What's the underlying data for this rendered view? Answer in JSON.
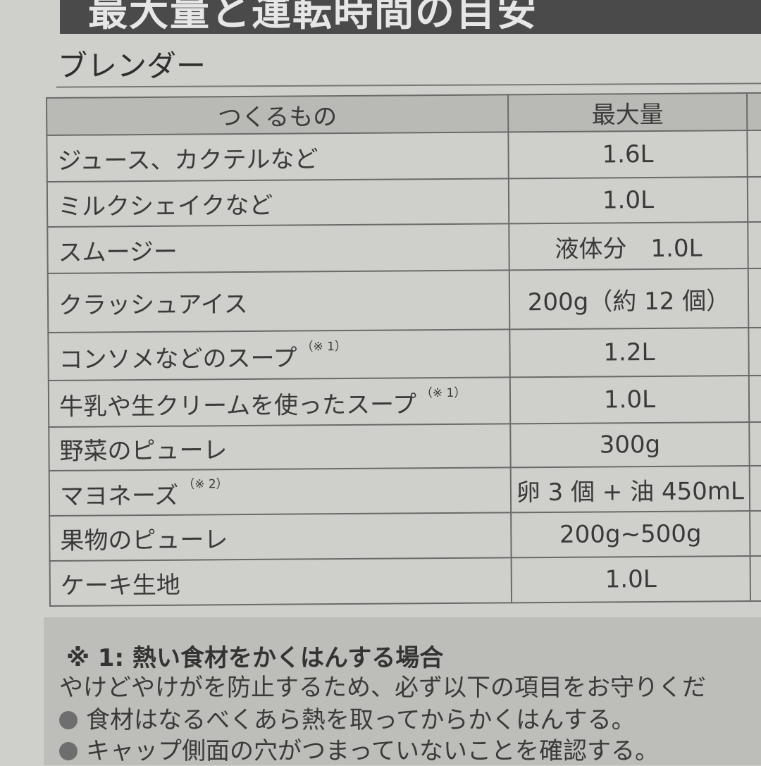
{
  "banner_title": "最大量と運転時間の目安",
  "section_title": "ブレンダー",
  "table": {
    "headers": [
      "つくるもの",
      "最大量"
    ],
    "rows": [
      {
        "item": "ジュース、カクテルなど",
        "note": "",
        "max": "1.6L"
      },
      {
        "item": "ミルクシェイクなど",
        "note": "",
        "max": "1.0L"
      },
      {
        "item": "スムージー",
        "note": "",
        "max": "液体分　1.0L"
      },
      {
        "item": "クラッシュアイス",
        "note": "",
        "max": "200g（約 12 個）"
      },
      {
        "item": "コンソメなどのスープ",
        "note": "（※ 1）",
        "max": "1.2L"
      },
      {
        "item": "牛乳や生クリームを使ったスープ",
        "note": "（※ 1）",
        "max": "1.0L"
      },
      {
        "item": "野菜のピューレ",
        "note": "",
        "max": "300g"
      },
      {
        "item": "マヨネーズ",
        "note": "（※ 2）",
        "max": "卵 3 個 + 油 450mL"
      },
      {
        "item": "果物のピューレ",
        "note": "",
        "max": "200g~500g"
      },
      {
        "item": "ケーキ生地",
        "note": "",
        "max": "1.0L"
      }
    ]
  },
  "notes": {
    "heading": "※ 1: 熱い食材をかくはんする場合",
    "lead": "やけどやけがを防止するため、必ず以下の項目をお守りくだ",
    "bullets": [
      "食材はなるべくあら熱を取ってからかくはんする。",
      "キャップ側面の穴がつまっていないことを確認する。"
    ]
  }
}
